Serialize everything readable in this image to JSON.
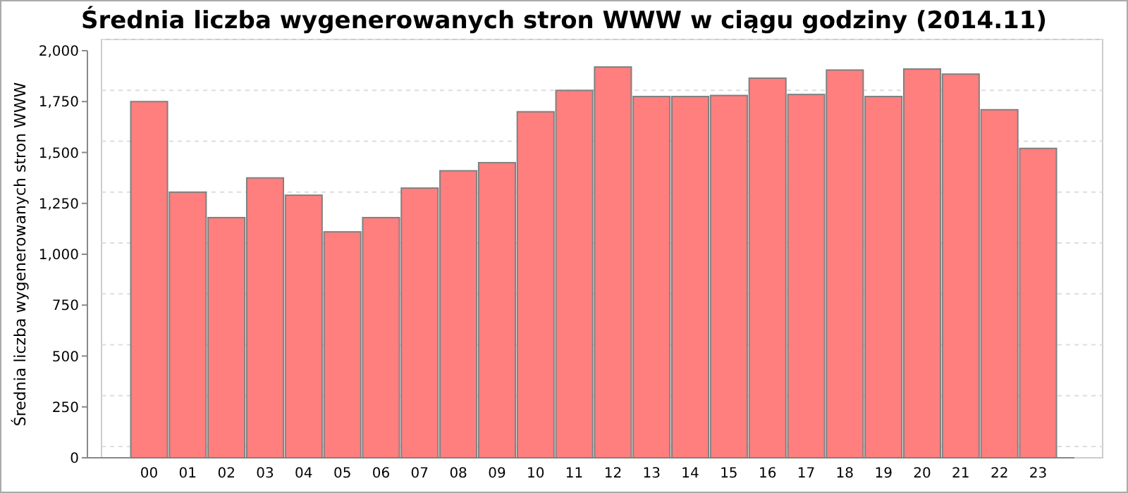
{
  "chart_data": {
    "type": "bar",
    "title": "Średnia liczba wygenerowanych stron WWW w ciągu godziny (2014.11)",
    "ylabel": "Średnia liczba wygenerowanych stron WWW",
    "categories": [
      "00",
      "01",
      "02",
      "03",
      "04",
      "05",
      "06",
      "07",
      "08",
      "09",
      "10",
      "11",
      "12",
      "13",
      "14",
      "15",
      "16",
      "17",
      "18",
      "19",
      "20",
      "21",
      "22",
      "23"
    ],
    "values": [
      1750,
      1305,
      1180,
      1375,
      1290,
      1110,
      1180,
      1325,
      1410,
      1450,
      1700,
      1805,
      1920,
      1775,
      1775,
      1780,
      1865,
      1785,
      1905,
      1775,
      1910,
      1885,
      1710,
      1520
    ],
    "color": "#ff7f7f",
    "ylim": [
      0,
      2000
    ],
    "yticks": [
      {
        "value": 0,
        "label": "0"
      },
      {
        "value": 250,
        "label": "250"
      },
      {
        "value": 500,
        "label": "500"
      },
      {
        "value": 750,
        "label": "750"
      },
      {
        "value": 1000,
        "label": "1,000"
      },
      {
        "value": 1250,
        "label": "1,250"
      },
      {
        "value": 1500,
        "label": "1,500"
      },
      {
        "value": 1750,
        "label": "1,750"
      },
      {
        "value": 2000,
        "label": "2,000"
      }
    ],
    "grid": "y"
  }
}
